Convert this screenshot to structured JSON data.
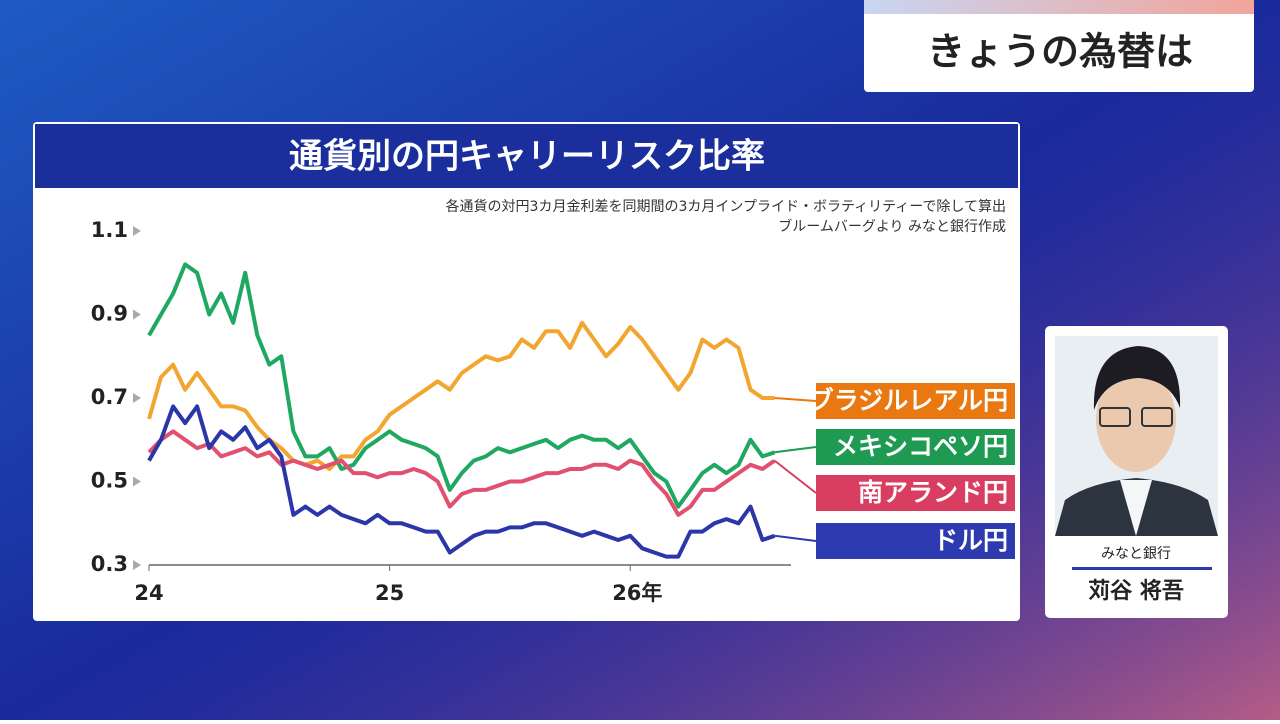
{
  "header": {
    "title": "きょうの為替は"
  },
  "presenter": {
    "affiliation": "みなと銀行",
    "name": "苅谷 将吾"
  },
  "chart_data": {
    "type": "line",
    "title": "通貨別の円キャリーリスク比率",
    "subtitle": [
      "各通貨の対円3カ月金利差を同期間の3カ月インプライド・ボラティリティーで除して算出",
      "ブルームバーグより みなと銀行作成"
    ],
    "x": [
      24,
      24.05,
      24.1,
      24.15,
      24.2,
      24.25,
      24.3,
      24.35,
      24.4,
      24.45,
      24.5,
      24.55,
      24.6,
      24.65,
      24.7,
      24.75,
      24.8,
      24.85,
      24.9,
      24.95,
      25,
      25.05,
      25.1,
      25.15,
      25.2,
      25.25,
      25.3,
      25.35,
      25.4,
      25.45,
      25.5,
      25.55,
      25.6,
      25.65,
      25.7,
      25.75,
      25.8,
      25.85,
      25.9,
      25.95,
      26,
      26.05,
      26.1,
      26.15,
      26.2,
      26.25,
      26.3,
      26.35,
      26.4,
      26.45,
      26.5,
      26.55,
      26.6
    ],
    "xlim": [
      24,
      26.66
    ],
    "xticks": [
      24,
      25,
      {
        "value": 26,
        "label": "26年"
      }
    ],
    "ylim": [
      0.3,
      1.1
    ],
    "yticks": [
      0.3,
      0.5,
      0.7,
      0.9,
      1.1
    ],
    "grid": false,
    "series": [
      {
        "name": "ブラジルレアル円",
        "color": "#f2a52f",
        "label_color": "#e8780f",
        "values": [
          0.65,
          0.75,
          0.78,
          0.72,
          0.76,
          0.72,
          0.68,
          0.68,
          0.67,
          0.63,
          0.6,
          0.58,
          0.55,
          0.54,
          0.55,
          0.53,
          0.56,
          0.56,
          0.6,
          0.62,
          0.66,
          0.68,
          0.7,
          0.72,
          0.74,
          0.72,
          0.76,
          0.78,
          0.8,
          0.79,
          0.8,
          0.84,
          0.82,
          0.86,
          0.86,
          0.82,
          0.88,
          0.84,
          0.8,
          0.83,
          0.87,
          0.84,
          0.8,
          0.76,
          0.72,
          0.76,
          0.84,
          0.82,
          0.84,
          0.82,
          0.72,
          0.7,
          0.7
        ]
      },
      {
        "name": "メキシコペソ円",
        "color": "#1fa862",
        "label_color": "#1e9a52",
        "values": [
          0.85,
          0.9,
          0.95,
          1.02,
          1.0,
          0.9,
          0.95,
          0.88,
          1.0,
          0.85,
          0.78,
          0.8,
          0.62,
          0.56,
          0.56,
          0.58,
          0.53,
          0.54,
          0.58,
          0.6,
          0.62,
          0.6,
          0.59,
          0.58,
          0.56,
          0.48,
          0.52,
          0.55,
          0.56,
          0.58,
          0.57,
          0.58,
          0.59,
          0.6,
          0.58,
          0.6,
          0.61,
          0.6,
          0.6,
          0.58,
          0.6,
          0.56,
          0.52,
          0.5,
          0.44,
          0.48,
          0.52,
          0.54,
          0.52,
          0.54,
          0.6,
          0.56,
          0.57
        ]
      },
      {
        "name": "南アランド円",
        "color": "#e2506f",
        "label_color": "#d93d60",
        "values": [
          0.57,
          0.6,
          0.62,
          0.6,
          0.58,
          0.59,
          0.56,
          0.57,
          0.58,
          0.56,
          0.57,
          0.54,
          0.55,
          0.54,
          0.53,
          0.54,
          0.55,
          0.52,
          0.52,
          0.51,
          0.52,
          0.52,
          0.53,
          0.52,
          0.5,
          0.44,
          0.47,
          0.48,
          0.48,
          0.49,
          0.5,
          0.5,
          0.51,
          0.52,
          0.52,
          0.53,
          0.53,
          0.54,
          0.54,
          0.53,
          0.55,
          0.54,
          0.5,
          0.47,
          0.42,
          0.44,
          0.48,
          0.48,
          0.5,
          0.52,
          0.54,
          0.53,
          0.55
        ]
      },
      {
        "name": "ドル円",
        "color": "#2b37a8",
        "label_color": "#2e3bb0",
        "values": [
          0.55,
          0.6,
          0.68,
          0.64,
          0.68,
          0.58,
          0.62,
          0.6,
          0.63,
          0.58,
          0.6,
          0.56,
          0.42,
          0.44,
          0.42,
          0.44,
          0.42,
          0.41,
          0.4,
          0.42,
          0.4,
          0.4,
          0.39,
          0.38,
          0.38,
          0.33,
          0.35,
          0.37,
          0.38,
          0.38,
          0.39,
          0.39,
          0.4,
          0.4,
          0.39,
          0.38,
          0.37,
          0.38,
          0.37,
          0.36,
          0.37,
          0.34,
          0.33,
          0.32,
          0.32,
          0.38,
          0.38,
          0.4,
          0.41,
          0.4,
          0.44,
          0.36,
          0.37
        ]
      }
    ]
  }
}
